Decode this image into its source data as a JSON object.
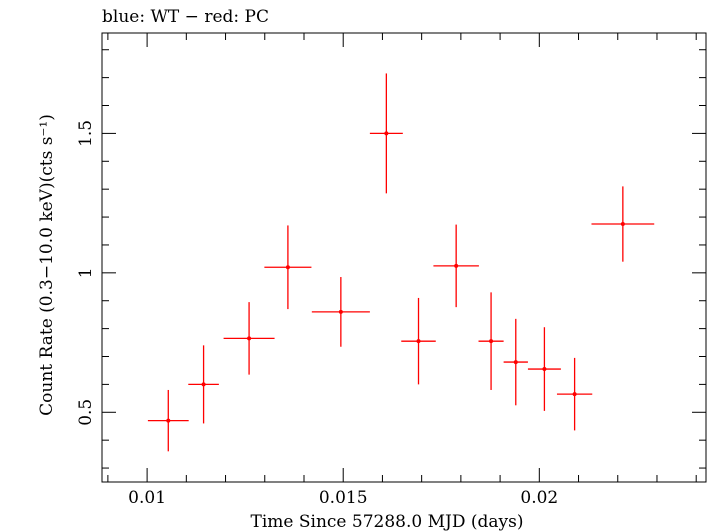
{
  "chart_data": {
    "type": "scatter",
    "title": "blue: WT − red: PC",
    "xlabel": "Time Since 57288.0 MJD (days)",
    "ylabel": "Count Rate (0.3−10.0 keV)(cts s⁻¹)",
    "xlim": [
      0.00885,
      0.02425
    ],
    "ylim": [
      0.25,
      1.86
    ],
    "x_ticks": [
      {
        "value": 0.01,
        "label": "0.01"
      },
      {
        "value": 0.015,
        "label": "0.015"
      },
      {
        "value": 0.02,
        "label": "0.02"
      }
    ],
    "y_ticks": [
      {
        "value": 0.5,
        "label": "0.5"
      },
      {
        "value": 1,
        "label": "1"
      },
      {
        "value": 1.5,
        "label": "1.5"
      }
    ],
    "grid": false,
    "series": [
      {
        "color": "#ff0000",
        "points": [
          {
            "x": 0.01054,
            "xerr": 0.00052,
            "y": 0.47,
            "yerr": 0.11
          },
          {
            "x": 0.01144,
            "xerr": 0.00039,
            "y": 0.6,
            "yerr": 0.14
          },
          {
            "x": 0.0126,
            "xerr": 0.00065,
            "y": 0.765,
            "yerr": 0.13
          },
          {
            "x": 0.01359,
            "xerr": 0.0006,
            "y": 1.02,
            "yerr": 0.15
          },
          {
            "x": 0.01494,
            "xerr": 0.00074,
            "y": 0.86,
            "yerr": 0.125
          },
          {
            "x": 0.0161,
            "xerr": 0.00042,
            "y": 1.5,
            "yerr": 0.215
          },
          {
            "x": 0.01692,
            "xerr": 0.00044,
            "y": 0.755,
            "yerr": 0.155
          },
          {
            "x": 0.01788,
            "xerr": 0.00058,
            "y": 1.025,
            "yerr": 0.148
          },
          {
            "x": 0.01877,
            "xerr": 0.00032,
            "y": 0.755,
            "yerr": 0.175
          },
          {
            "x": 0.0194,
            "xerr": 0.00031,
            "y": 0.68,
            "yerr": 0.155
          },
          {
            "x": 0.02013,
            "xerr": 0.00042,
            "y": 0.655,
            "yerr": 0.15
          },
          {
            "x": 0.0209,
            "xerr": 0.00045,
            "y": 0.565,
            "yerr": 0.13
          },
          {
            "x": 0.02213,
            "xerr": 0.0008,
            "y": 1.175,
            "yerr": 0.135
          }
        ]
      }
    ]
  }
}
